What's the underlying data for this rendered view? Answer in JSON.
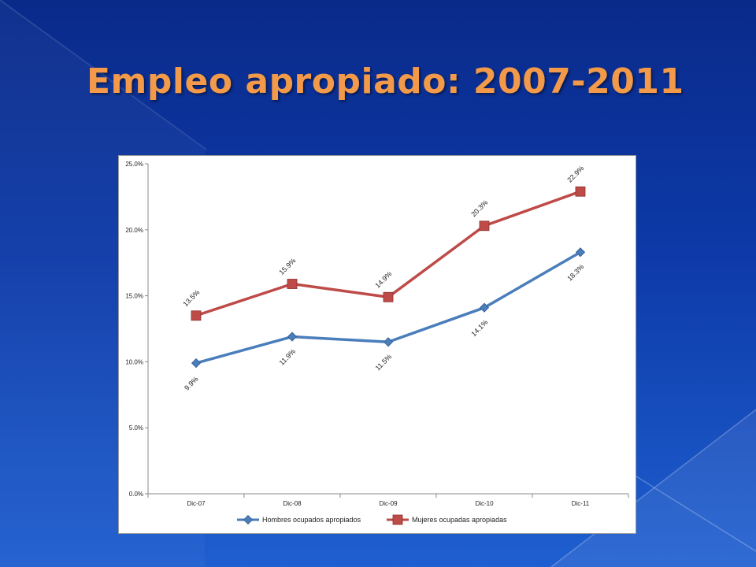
{
  "slide": {
    "title": "Empleo apropiado: 2007-2011"
  },
  "chart_data": {
    "type": "line",
    "categories": [
      "Dic-07",
      "Dic-08",
      "Dic-09",
      "Dic-10",
      "Dic-11"
    ],
    "ylim": [
      0,
      25
    ],
    "yticks": [
      0,
      5,
      10,
      15,
      20,
      25
    ],
    "ytick_labels": [
      "0.0%",
      "5.0%",
      "10.0%",
      "15.0%",
      "20.0%",
      "25.0%"
    ],
    "grid": false,
    "legend_position": "bottom",
    "series": [
      {
        "name": "Hombres ocupados apropiados",
        "values": [
          9.9,
          11.9,
          11.5,
          14.1,
          18.3
        ],
        "labels": [
          "9.9%",
          "11.9%",
          "11.5%",
          "14.1%",
          "18.3%"
        ],
        "color": "#4a7ebb",
        "marker": "diamond",
        "label_position": "below"
      },
      {
        "name": "Mujeres ocupadas apropiadas",
        "values": [
          13.5,
          15.9,
          14.9,
          20.3,
          22.9
        ],
        "labels": [
          "13.5%",
          "15.9%",
          "14.9%",
          "20.3%",
          "22.9%"
        ],
        "color": "#be4b48",
        "marker": "square",
        "label_position": "above"
      }
    ]
  }
}
